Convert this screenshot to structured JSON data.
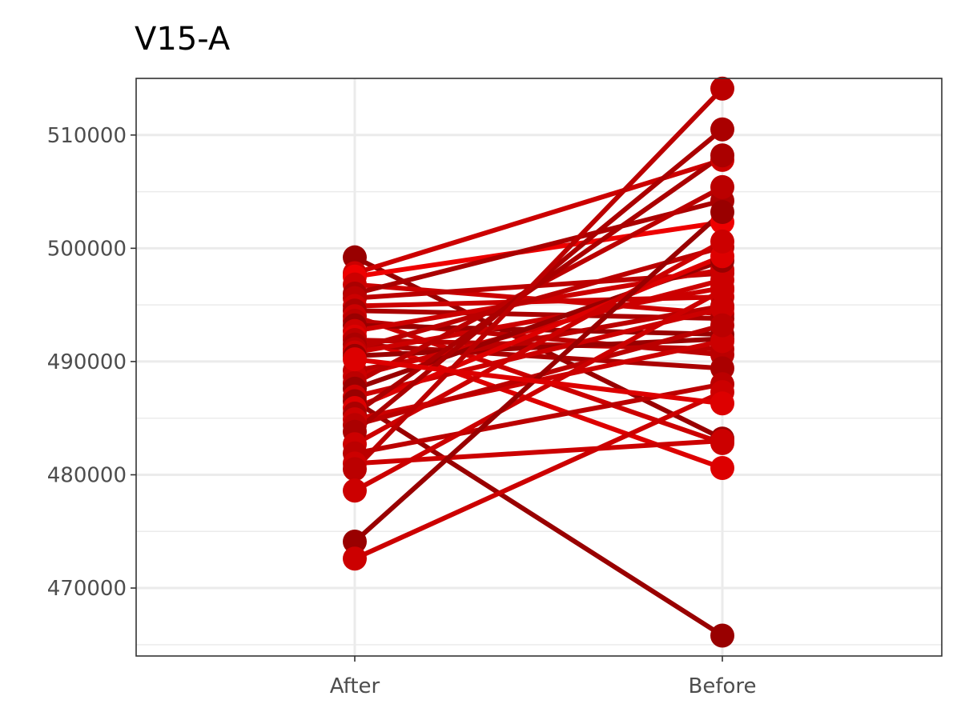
{
  "chart_data": {
    "type": "line",
    "title": "V15-A",
    "xlabel": "",
    "ylabel": "",
    "categories": [
      "After",
      "Before"
    ],
    "ylim": [
      464000,
      515000
    ],
    "y_ticks": [
      470000,
      480000,
      490000,
      500000,
      510000
    ],
    "grid": true,
    "legend": "none",
    "colors": [
      "#990000",
      "#aa0000",
      "#bb0000",
      "#cc0000",
      "#dd0000",
      "#ee0000"
    ],
    "pairs": [
      {
        "after": 499200,
        "before": 483200,
        "color": "#990000"
      },
      {
        "after": 497800,
        "before": 507800,
        "color": "#cc0000"
      },
      {
        "after": 497500,
        "before": 502300,
        "color": "#ee0000"
      },
      {
        "after": 496800,
        "before": 494200,
        "color": "#cc0000"
      },
      {
        "after": 496000,
        "before": 504200,
        "color": "#aa0000"
      },
      {
        "after": 495600,
        "before": 497800,
        "color": "#bb0000"
      },
      {
        "after": 494900,
        "before": 495700,
        "color": "#cc0000"
      },
      {
        "after": 494500,
        "before": 493800,
        "color": "#aa0000"
      },
      {
        "after": 494000,
        "before": 482800,
        "color": "#cc0000"
      },
      {
        "after": 493600,
        "before": 490600,
        "color": "#bb0000"
      },
      {
        "after": 493200,
        "before": 492400,
        "color": "#990000"
      },
      {
        "after": 492700,
        "before": 498100,
        "color": "#cc0000"
      },
      {
        "after": 492200,
        "before": 480600,
        "color": "#dd0000"
      },
      {
        "after": 491900,
        "before": 491100,
        "color": "#bb0000"
      },
      {
        "after": 491500,
        "before": 489400,
        "color": "#aa0000"
      },
      {
        "after": 491100,
        "before": 500100,
        "color": "#bb0000"
      },
      {
        "after": 490800,
        "before": 496500,
        "color": "#cc0000"
      },
      {
        "after": 490500,
        "before": 492000,
        "color": "#990000"
      },
      {
        "after": 489200,
        "before": 494900,
        "color": "#bb0000"
      },
      {
        "after": 488700,
        "before": 497200,
        "color": "#cc0000"
      },
      {
        "after": 488100,
        "before": 505400,
        "color": "#bb0000"
      },
      {
        "after": 487600,
        "before": 498900,
        "color": "#990000"
      },
      {
        "after": 486900,
        "before": 494700,
        "color": "#cc0000"
      },
      {
        "after": 486500,
        "before": 465800,
        "color": "#990000"
      },
      {
        "after": 485900,
        "before": 499300,
        "color": "#dd0000"
      },
      {
        "after": 485400,
        "before": 508200,
        "color": "#aa0000"
      },
      {
        "after": 484900,
        "before": 491800,
        "color": "#cc0000"
      },
      {
        "after": 484400,
        "before": 493200,
        "color": "#bb0000"
      },
      {
        "after": 483800,
        "before": 510500,
        "color": "#aa0000"
      },
      {
        "after": 482700,
        "before": 500600,
        "color": "#cc0000"
      },
      {
        "after": 481900,
        "before": 488000,
        "color": "#bb0000"
      },
      {
        "after": 481000,
        "before": 483000,
        "color": "#cc0000"
      },
      {
        "after": 480500,
        "before": 514100,
        "color": "#bb0000"
      },
      {
        "after": 478600,
        "before": 496300,
        "color": "#cc0000"
      },
      {
        "after": 474100,
        "before": 503200,
        "color": "#990000"
      },
      {
        "after": 472600,
        "before": 487300,
        "color": "#cc0000"
      },
      {
        "after": 490200,
        "before": 486300,
        "color": "#dd0000"
      }
    ]
  }
}
